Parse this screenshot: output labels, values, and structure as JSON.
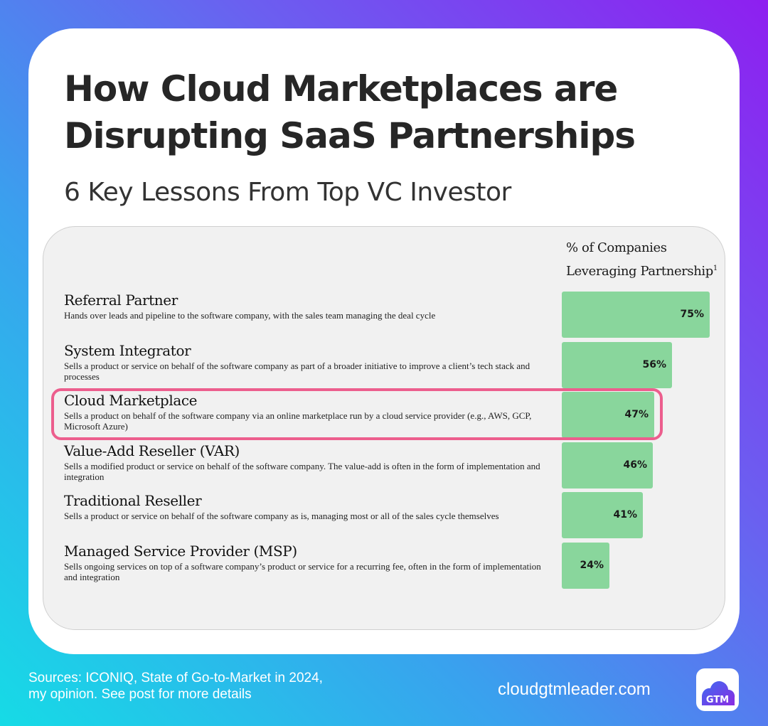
{
  "header": {
    "title": "How Cloud Marketplaces are\nDisrupting SaaS Partnerships",
    "subtitle": "6 Key Lessons From Top VC Investor"
  },
  "chart_data": {
    "type": "bar",
    "orientation": "horizontal",
    "column_header": "% of Companies\nLeveraging Partnership",
    "footnote_marker": "1",
    "categories": [
      "Referral Partner",
      "System Integrator",
      "Cloud Marketplace",
      "Value-Add Reseller (VAR)",
      "Traditional Reseller",
      "Managed Service Provider (MSP)"
    ],
    "descriptions": [
      "Hands over leads and pipeline to the software company, with the sales team managing the deal cycle",
      "Sells a product or service on behalf of the software company as part of a broader initiative to improve a client’s tech stack and processes",
      "Sells a product on behalf of the software company via an online marketplace run by a cloud service provider (e.g., AWS, GCP, Microsoft Azure)",
      "Sells a modified product or service on behalf of the software company. The value-add is often in the form of implementation and integration",
      "Sells a product or service on behalf of the software company as is, managing most or all of the sales cycle themselves",
      "Sells ongoing services on top of a software company’s product or service for a recurring fee, often in the form of implementation and integration"
    ],
    "values": [
      75,
      56,
      47,
      46,
      41,
      24
    ],
    "value_labels": [
      "75%",
      "56%",
      "47%",
      "46%",
      "41%",
      "24%"
    ],
    "xlim": [
      0,
      75
    ],
    "highlighted_category": "Cloud Marketplace",
    "colors": {
      "bar": "#89d69c",
      "highlight": "#ec5e8d"
    }
  },
  "footer": {
    "sources": "Sources: ICONIQ, State of Go-to-Market in 2024,\nmy opinion. See post for more details",
    "website": "cloudgtmleader.com",
    "logo_text": "GTM",
    "logo_icon": "cloud-icon"
  }
}
